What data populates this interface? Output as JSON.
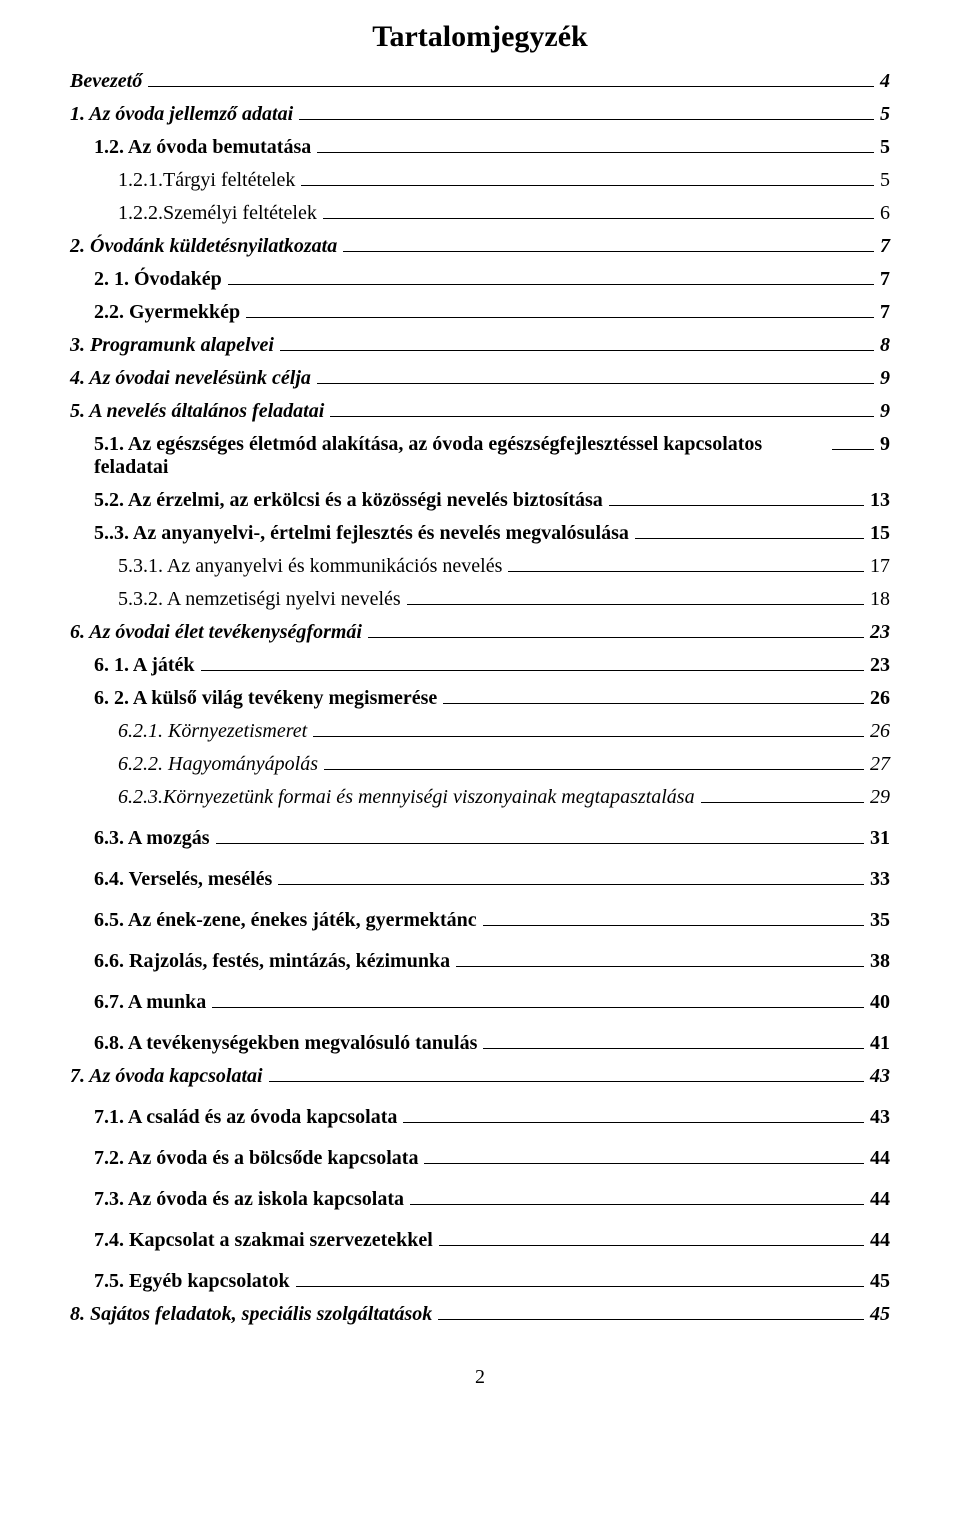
{
  "document": {
    "title": "Tartalomjegyzék",
    "page_number": "2",
    "font_family": "Times New Roman",
    "text_color": "#000000",
    "background_color": "#ffffff",
    "title_fontsize": 30,
    "body_fontsize": 20,
    "entries": [
      {
        "label": "Bevezető",
        "page": "4",
        "indent": 0,
        "style": "bolditalic",
        "gap": false
      },
      {
        "label": "1. Az óvoda jellemző adatai",
        "page": "5",
        "indent": 0,
        "style": "bolditalic",
        "gap": false
      },
      {
        "label": "1.2. Az óvoda bemutatása",
        "page": "5",
        "indent": 1,
        "style": "bold",
        "gap": false
      },
      {
        "label": "1.2.1.Tárgyi feltételek",
        "page": "5",
        "indent": 2,
        "style": "normal",
        "gap": false
      },
      {
        "label": "1.2.2.Személyi feltételek",
        "page": "6",
        "indent": 2,
        "style": "normal",
        "gap": false
      },
      {
        "label": "2. Óvodánk küldetésnyilatkozata",
        "page": "7",
        "indent": 0,
        "style": "bolditalic",
        "gap": false
      },
      {
        "label": "2. 1. Óvodakép",
        "page": "7",
        "indent": 1,
        "style": "bold",
        "gap": false
      },
      {
        "label": "2.2. Gyermekkép",
        "page": "7",
        "indent": 1,
        "style": "bold",
        "gap": false
      },
      {
        "label": "3. Programunk alapelvei",
        "page": "8",
        "indent": 0,
        "style": "bolditalic",
        "gap": false
      },
      {
        "label": "4. Az óvodai nevelésünk célja",
        "page": "9",
        "indent": 0,
        "style": "bolditalic",
        "gap": false
      },
      {
        "label": "5. A nevelés általános feladatai",
        "page": "9",
        "indent": 0,
        "style": "bolditalic",
        "gap": false
      },
      {
        "label": "5.1. Az egészséges életmód alakítása, az óvoda egészségfejlesztéssel kapcsolatos feladatai",
        "page": "9",
        "indent": 1,
        "style": "bold",
        "gap": false
      },
      {
        "label": "5.2. Az érzelmi, az erkölcsi és a közösségi nevelés biztosítása",
        "page": "13",
        "indent": 1,
        "style": "bold",
        "gap": false
      },
      {
        "label": "5..3. Az anyanyelvi-, értelmi fejlesztés és nevelés megvalósulása",
        "page": "15",
        "indent": 1,
        "style": "bold",
        "gap": false
      },
      {
        "label": "5.3.1. Az anyanyelvi és kommunikációs nevelés",
        "page": "17",
        "indent": 2,
        "style": "normal",
        "gap": false
      },
      {
        "label": "5.3.2. A nemzetiségi nyelvi nevelés",
        "page": "18",
        "indent": 2,
        "style": "normal",
        "gap": false
      },
      {
        "label": "6. Az óvodai élet tevékenységformái",
        "page": "23",
        "indent": 0,
        "style": "bolditalic",
        "gap": false
      },
      {
        "label": "6. 1. A játék",
        "page": "23",
        "indent": 1,
        "style": "bold",
        "gap": false
      },
      {
        "label": "6. 2. A külső világ tevékeny megismerése",
        "page": "26",
        "indent": 1,
        "style": "bold",
        "gap": false
      },
      {
        "label": "6.2.1. Környezetismeret",
        "page": "26",
        "indent": 2,
        "style": "italic",
        "gap": false
      },
      {
        "label": "6.2.2. Hagyományápolás",
        "page": "27",
        "indent": 2,
        "style": "italic",
        "gap": false
      },
      {
        "label": "6.2.3.Környezetünk formai és mennyiségi viszonyainak megtapasztalása",
        "page": "29",
        "indent": 2,
        "style": "italic",
        "gap": false
      },
      {
        "label": "6.3. A mozgás",
        "page": "31",
        "indent": 1,
        "style": "bold",
        "gap": true
      },
      {
        "label": "6.4. Verselés, mesélés",
        "page": "33",
        "indent": 1,
        "style": "bold",
        "gap": true
      },
      {
        "label": "6.5. Az ének-zene, énekes játék, gyermektánc",
        "page": "35",
        "indent": 1,
        "style": "bold",
        "gap": true
      },
      {
        "label": "6.6. Rajzolás, festés, mintázás, kézimunka",
        "page": "38",
        "indent": 1,
        "style": "bold",
        "gap": true
      },
      {
        "label": "6.7. A munka",
        "page": "40",
        "indent": 1,
        "style": "bold",
        "gap": true
      },
      {
        "label": "6.8. A  tevékenységekben megvalósuló tanulás",
        "page": "41",
        "indent": 1,
        "style": "bold",
        "gap": true
      },
      {
        "label": "7. Az óvoda kapcsolatai",
        "page": "43",
        "indent": 0,
        "style": "bolditalic",
        "gap": false
      },
      {
        "label": "7.1. A család és az óvoda kapcsolata",
        "page": "43",
        "indent": 1,
        "style": "bold",
        "gap": true
      },
      {
        "label": "7.2.  Az óvoda és a bölcsőde kapcsolata",
        "page": "44",
        "indent": 1,
        "style": "bold",
        "gap": true
      },
      {
        "label": "7.3. Az óvoda és az iskola kapcsolata",
        "page": "44",
        "indent": 1,
        "style": "bold",
        "gap": true
      },
      {
        "label": "7.4. Kapcsolat a szakmai szervezetekkel",
        "page": "44",
        "indent": 1,
        "style": "bold",
        "gap": true
      },
      {
        "label": "7.5. Egyéb kapcsolatok",
        "page": "45",
        "indent": 1,
        "style": "bold",
        "gap": true
      },
      {
        "label": "8. Sajátos feladatok, speciális szolgáltatások",
        "page": "45",
        "indent": 0,
        "style": "bolditalic",
        "gap": false
      }
    ]
  }
}
